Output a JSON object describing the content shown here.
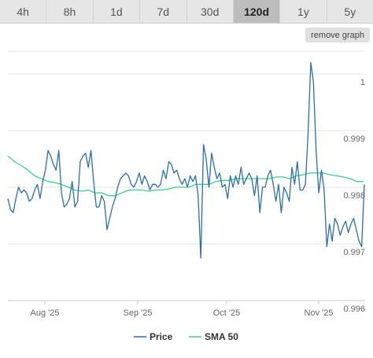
{
  "tabs": [
    {
      "label": "4h",
      "active": false
    },
    {
      "label": "8h",
      "active": false
    },
    {
      "label": "1d",
      "active": false
    },
    {
      "label": "7d",
      "active": false
    },
    {
      "label": "30d",
      "active": false
    },
    {
      "label": "120d",
      "active": true
    },
    {
      "label": "1y",
      "active": false
    },
    {
      "label": "5y",
      "active": false
    }
  ],
  "remove_graph_label": "remove graph",
  "chart_data": {
    "type": "line",
    "title": "",
    "xlabel": "",
    "ylabel": "",
    "x_ticks": [
      "Aug '25",
      "Sep '25",
      "Oct '25",
      "Nov '25"
    ],
    "y_ticks": [
      0.996,
      0.997,
      0.998,
      0.999,
      1
    ],
    "y_tick_labels": [
      "0.996",
      "0.997",
      "0.998",
      "0.999",
      "1"
    ],
    "ylim": [
      0.996,
      1.0004
    ],
    "grid": true,
    "legend": "bottom-center",
    "series": [
      {
        "name": "Price",
        "color": "#2a6fa8",
        "values": [
          0.9978,
          0.9976,
          0.99755,
          0.9978,
          0.998,
          0.9979,
          0.99795,
          0.9979,
          0.99775,
          0.9978,
          0.99795,
          0.99805,
          0.9978,
          0.9981,
          0.9983,
          0.99865,
          0.99855,
          0.9984,
          0.9983,
          0.99865,
          0.9979,
          0.99765,
          0.9977,
          0.9978,
          0.9981,
          0.99765,
          0.99775,
          0.99845,
          0.99855,
          0.9986,
          0.99835,
          0.99865,
          0.9981,
          0.99765,
          0.99765,
          0.99785,
          0.99775,
          0.99725,
          0.99745,
          0.99765,
          0.9978,
          0.998,
          0.99815,
          0.9982,
          0.99825,
          0.9982,
          0.99805,
          0.998,
          0.9981,
          0.99825,
          0.99805,
          0.9982,
          0.9981,
          0.99795,
          0.99805,
          0.99805,
          0.998,
          0.99805,
          0.9983,
          0.99815,
          0.99845,
          0.9984,
          0.99825,
          0.9983,
          0.99815,
          0.99805,
          0.99815,
          0.998,
          0.9982,
          0.9981,
          0.9982,
          0.99785,
          0.99675,
          0.99875,
          0.9985,
          0.998,
          0.9986,
          0.99835,
          0.99815,
          0.99825,
          0.998,
          0.99805,
          0.9978,
          0.9982,
          0.998,
          0.9982,
          0.99805,
          0.99835,
          0.99805,
          0.99815,
          0.99825,
          0.99815,
          0.99785,
          0.9982,
          0.99755,
          0.998,
          0.998,
          0.9982,
          0.9983,
          0.99805,
          0.99775,
          0.99805,
          0.99755,
          0.998,
          0.9979,
          0.99775,
          0.99835,
          0.99805,
          0.99845,
          0.99795,
          0.99795,
          0.99805,
          0.99895,
          1.0002,
          0.99985,
          0.99865,
          0.9979,
          0.9983,
          0.99795,
          0.99695,
          0.99735,
          0.99705,
          0.99745,
          0.99735,
          0.99715,
          0.9973,
          0.9974,
          0.9972,
          0.99735,
          0.99745,
          0.99725,
          0.99705,
          0.99695,
          0.99805
        ]
      },
      {
        "name": "SMA 50",
        "color": "#3ecf8e",
        "values": [
          0.99855,
          0.99845,
          0.99838,
          0.9983,
          0.9982,
          0.99815,
          0.9981,
          0.99808,
          0.99805,
          0.998,
          0.99795,
          0.99793,
          0.99795,
          0.9979,
          0.9979,
          0.99785,
          0.99785,
          0.9979,
          0.99795,
          0.99795,
          0.99795,
          0.99793,
          0.99795,
          0.99795,
          0.99797,
          0.998,
          0.998,
          0.998,
          0.99805,
          0.99805,
          0.99805,
          0.9981,
          0.99812,
          0.99812,
          0.99815,
          0.99815,
          0.99815,
          0.99815,
          0.99815,
          0.99815,
          0.99818,
          0.99818,
          0.99815,
          0.9982,
          0.99822,
          0.99825,
          0.99825,
          0.99825,
          0.99822,
          0.9982,
          0.99818,
          0.99815,
          0.9981,
          0.9981
        ]
      }
    ]
  }
}
